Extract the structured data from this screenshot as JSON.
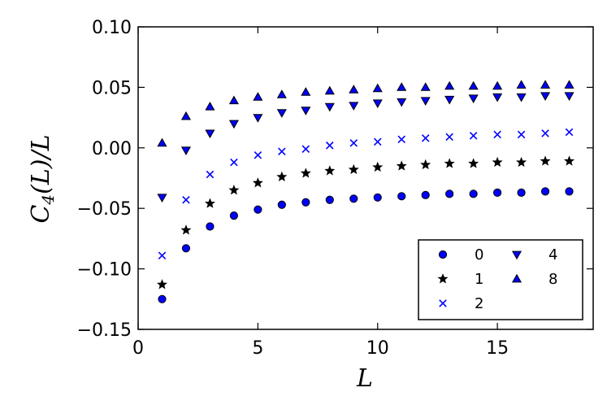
{
  "chart_data": {
    "type": "scatter",
    "title": "",
    "xlabel": "L",
    "ylabel": "C4(L)/L",
    "xlim": [
      0,
      19
    ],
    "ylim": [
      -0.15,
      0.1
    ],
    "x_ticks": [
      0,
      5,
      10,
      15
    ],
    "x_tick_labels": [
      "0",
      "5",
      "10",
      "15"
    ],
    "y_ticks": [
      -0.15,
      -0.1,
      -0.05,
      0.0,
      0.05,
      0.1
    ],
    "y_tick_labels": [
      "−0.15",
      "−0.10",
      "−0.05",
      "0.00",
      "0.05",
      "0.10"
    ],
    "grid": false,
    "legend_position": "lower-right",
    "x": [
      1,
      2,
      3,
      4,
      5,
      6,
      7,
      8,
      9,
      10,
      11,
      12,
      13,
      14,
      15,
      16,
      17,
      18
    ],
    "series": [
      {
        "name": "0",
        "marker": "circle",
        "color": "#0000ff",
        "values": [
          -0.125,
          -0.083,
          -0.065,
          -0.056,
          -0.051,
          -0.047,
          -0.045,
          -0.043,
          -0.042,
          -0.041,
          -0.04,
          -0.039,
          -0.038,
          -0.038,
          -0.037,
          -0.037,
          -0.036,
          -0.036
        ]
      },
      {
        "name": "1",
        "marker": "star",
        "color": "#000000",
        "values": [
          -0.113,
          -0.068,
          -0.046,
          -0.035,
          -0.029,
          -0.024,
          -0.021,
          -0.019,
          -0.018,
          -0.016,
          -0.015,
          -0.014,
          -0.013,
          -0.013,
          -0.012,
          -0.012,
          -0.011,
          -0.011
        ]
      },
      {
        "name": "2",
        "marker": "x",
        "color": "#0000ff",
        "values": [
          -0.089,
          -0.043,
          -0.022,
          -0.012,
          -0.006,
          -0.003,
          -0.001,
          0.002,
          0.004,
          0.005,
          0.007,
          0.008,
          0.009,
          0.01,
          0.011,
          0.011,
          0.012,
          0.013
        ]
      },
      {
        "name": "4",
        "marker": "triangle-down",
        "color": "#0000ff",
        "values": [
          -0.041,
          -0.002,
          0.012,
          0.02,
          0.025,
          0.029,
          0.031,
          0.034,
          0.035,
          0.037,
          0.038,
          0.039,
          0.04,
          0.041,
          0.042,
          0.042,
          0.043,
          0.043
        ]
      },
      {
        "name": "8",
        "marker": "triangle-up",
        "color": "#0000ff",
        "values": [
          0.004,
          0.026,
          0.034,
          0.039,
          0.042,
          0.044,
          0.046,
          0.047,
          0.048,
          0.049,
          0.05,
          0.05,
          0.051,
          0.051,
          0.051,
          0.052,
          0.052,
          0.052
        ]
      }
    ]
  }
}
